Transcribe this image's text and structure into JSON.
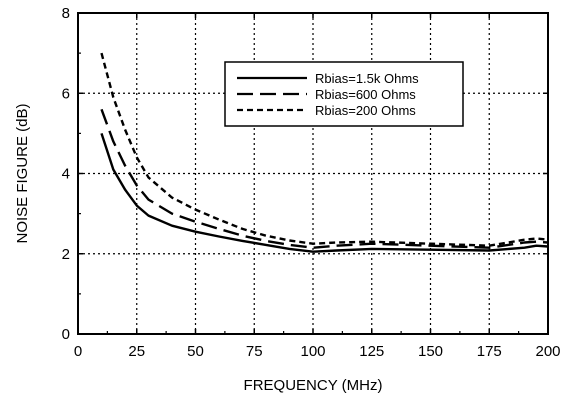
{
  "chart_data": {
    "type": "line",
    "xlabel": "FREQUENCY (MHz)",
    "ylabel": "NOISE FIGURE (dB)",
    "xlim": [
      0,
      200
    ],
    "ylim": [
      0,
      8
    ],
    "x_ticks": [
      "0",
      "25",
      "50",
      "75",
      "100",
      "125",
      "150",
      "175",
      "200"
    ],
    "y_ticks": [
      "0",
      "2",
      "4",
      "6",
      "8"
    ],
    "grid": true,
    "legend_position": "top-right",
    "series": [
      {
        "name": "Rbias=1.5k Ohms",
        "line_style": "solid",
        "x": [
          10,
          15,
          20,
          25,
          30,
          40,
          50,
          60,
          70,
          80,
          90,
          100,
          110,
          125,
          150,
          175,
          190,
          195,
          200
        ],
        "y": [
          5.0,
          4.1,
          3.6,
          3.2,
          2.95,
          2.7,
          2.55,
          2.43,
          2.32,
          2.22,
          2.12,
          2.05,
          2.08,
          2.12,
          2.1,
          2.08,
          2.15,
          2.2,
          2.18
        ]
      },
      {
        "name": "Rbias=600 Ohms",
        "line_style": "long-dash",
        "x": [
          10,
          15,
          20,
          25,
          30,
          40,
          50,
          60,
          70,
          80,
          90,
          100,
          110,
          125,
          150,
          175,
          190,
          195,
          200
        ],
        "y": [
          5.6,
          4.8,
          4.2,
          3.7,
          3.35,
          3.0,
          2.8,
          2.62,
          2.45,
          2.32,
          2.22,
          2.15,
          2.2,
          2.25,
          2.2,
          2.15,
          2.28,
          2.3,
          2.28
        ]
      },
      {
        "name": "Rbias=200 Ohms",
        "line_style": "short-dash",
        "x": [
          10,
          15,
          20,
          25,
          30,
          40,
          50,
          60,
          70,
          80,
          90,
          100,
          110,
          125,
          150,
          175,
          190,
          195,
          200
        ],
        "y": [
          7.0,
          5.9,
          5.1,
          4.4,
          3.9,
          3.4,
          3.1,
          2.85,
          2.62,
          2.45,
          2.33,
          2.25,
          2.28,
          2.3,
          2.25,
          2.2,
          2.35,
          2.38,
          2.35
        ]
      }
    ]
  }
}
